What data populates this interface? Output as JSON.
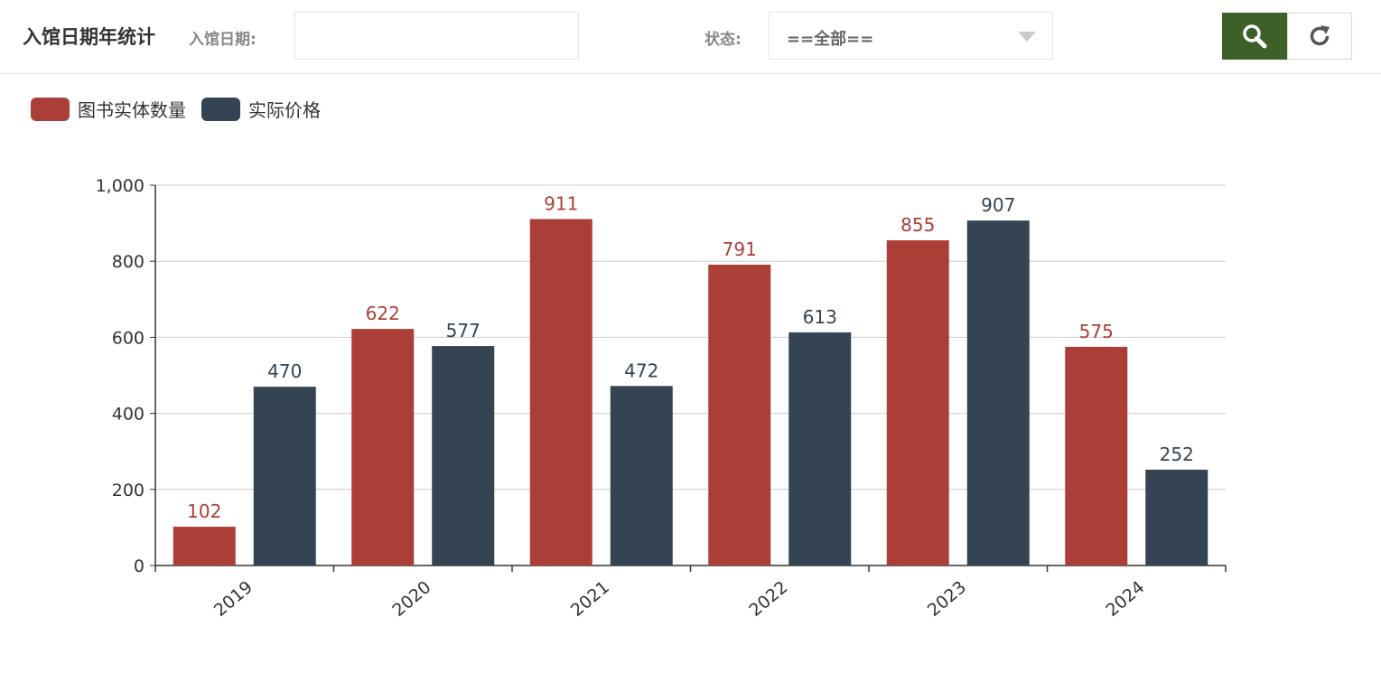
{
  "header": {
    "title": "入馆日期年统计",
    "date_label": "入馆日期:",
    "date_value": "",
    "status_label": "状态:",
    "status_value": "==全部=="
  },
  "buttons": {
    "search_icon": "search-icon",
    "reset_icon": "refresh-icon",
    "search_color": "#3f5f28"
  },
  "chart_data": {
    "type": "bar",
    "categories": [
      "2019",
      "2020",
      "2021",
      "2022",
      "2023",
      "2024"
    ],
    "series": [
      {
        "name": "图书实体数量",
        "color": "#ab3f38",
        "values": [
          102,
          622,
          911,
          791,
          855,
          575
        ]
      },
      {
        "name": "实际价格",
        "color": "#344453",
        "values": [
          470,
          577,
          472,
          613,
          907,
          252
        ]
      }
    ],
    "y_ticks": [
      "0",
      "200",
      "400",
      "600",
      "800",
      "1,000"
    ],
    "ylim": [
      0,
      1000
    ],
    "legend_position": "top-left",
    "grid": true,
    "xlabel": "",
    "ylabel": ""
  }
}
